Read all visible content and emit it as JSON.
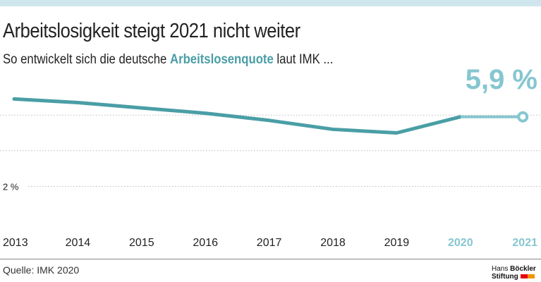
{
  "header": {
    "title": "Arbeitslosigkeit steigt 2021 nicht weiter",
    "subtitle_pre": "So entwickelt sich die deutsche ",
    "subtitle_highlight": "Arbeitslosenquote",
    "subtitle_post": " laut IMK ..."
  },
  "chart_data": {
    "type": "line",
    "x": [
      "2013",
      "2014",
      "2015",
      "2016",
      "2017",
      "2018",
      "2019",
      "2020",
      "2021"
    ],
    "series": [
      {
        "values": [
          6.9,
          6.7,
          6.4,
          6.1,
          5.7,
          5.2,
          5.0,
          5.9,
          5.9
        ]
      }
    ],
    "forecast_from": "2020",
    "annotation": "5,9 %",
    "ytick_labels": [
      {
        "value": 2,
        "label": "2 %"
      }
    ],
    "gridlines": [
      2,
      4,
      6
    ],
    "ylim": [
      0,
      7.5
    ],
    "grid": true,
    "colors": {
      "actual": "#4a9ea6",
      "forecast": "#86c6d0",
      "forecast_label": "#86c6d0",
      "axis_label": "#222"
    }
  },
  "footer": {
    "source": "Quelle: IMK 2020",
    "logo_line1_a": "Hans ",
    "logo_line1_b": "Böckler",
    "logo_line2": "Stiftung"
  }
}
